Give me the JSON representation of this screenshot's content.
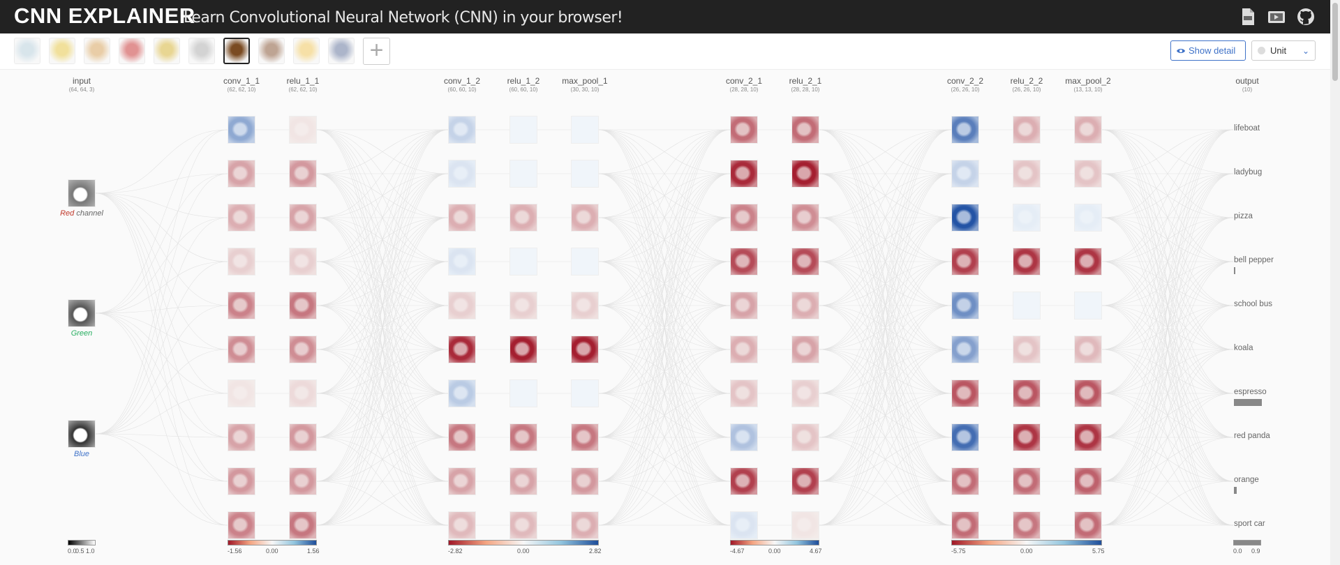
{
  "header": {
    "logo": "CNN EXPLAINER",
    "subtitle": "Learn Convolutional Neural Network (CNN) in your browser!",
    "icons": [
      "pdf-icon",
      "video-icon",
      "github-icon"
    ]
  },
  "toolbar": {
    "thumbnails": [
      {
        "name": "lifeboat",
        "color": "#b9d0dc"
      },
      {
        "name": "ladybug",
        "color": "#e6c84a"
      },
      {
        "name": "pizza",
        "color": "#d8a660"
      },
      {
        "name": "bell pepper",
        "color": "#c93a3a"
      },
      {
        "name": "school bus",
        "color": "#d7b53a"
      },
      {
        "name": "koala",
        "color": "#b0b0b0"
      },
      {
        "name": "espresso",
        "color": "#7a4b22"
      },
      {
        "name": "red panda",
        "color": "#8a5a3c"
      },
      {
        "name": "orange",
        "color": "#f0c860"
      },
      {
        "name": "sport car",
        "color": "#6a7aa0"
      }
    ],
    "active_index": 6,
    "add_icon": "plus-icon",
    "show_detail_label": "Show detail",
    "unit_label": "Unit"
  },
  "network": {
    "layers": [
      {
        "name": "input",
        "dims": "(64, 64, 3)"
      },
      {
        "name": "conv_1_1",
        "dims": "(62, 62, 10)"
      },
      {
        "name": "relu_1_1",
        "dims": "(62, 62, 10)"
      },
      {
        "name": "conv_1_2",
        "dims": "(60, 60, 10)"
      },
      {
        "name": "relu_1_2",
        "dims": "(60, 60, 10)"
      },
      {
        "name": "max_pool_1",
        "dims": "(30, 30, 10)"
      },
      {
        "name": "conv_2_1",
        "dims": "(28, 28, 10)"
      },
      {
        "name": "relu_2_1",
        "dims": "(28, 28, 10)"
      },
      {
        "name": "conv_2_2",
        "dims": "(26, 26, 10)"
      },
      {
        "name": "relu_2_2",
        "dims": "(26, 26, 10)"
      },
      {
        "name": "max_pool_2",
        "dims": "(13, 13, 10)"
      },
      {
        "name": "output",
        "dims": "(10)"
      }
    ],
    "input_channels": [
      {
        "label_prefix": "Red",
        "label_suffix": " channel",
        "color": "#c0392b"
      },
      {
        "label_prefix": "Green",
        "label_suffix": "",
        "color": "#27ae60"
      },
      {
        "label_prefix": "Blue",
        "label_suffix": "",
        "color": "#3f72c8"
      }
    ],
    "classes": [
      "lifeboat",
      "ladybug",
      "pizza",
      "bell pepper",
      "school bus",
      "koala",
      "espresso",
      "red panda",
      "orange",
      "sport car"
    ],
    "output_probs": [
      0.0,
      0.0,
      0.0,
      0.02,
      0.0,
      0.0,
      0.9,
      0.0,
      0.08,
      0.0
    ],
    "activations": [
      [
        0.45,
        -0.35,
        -0.3,
        -0.15,
        -0.5,
        -0.45,
        -0.05,
        -0.35,
        -0.4,
        -0.5
      ],
      [
        -0.05,
        -0.4,
        -0.35,
        -0.15,
        -0.55,
        -0.45,
        -0.1,
        -0.4,
        -0.4,
        -0.55
      ],
      [
        0.2,
        0.1,
        -0.3,
        0.1,
        -0.15,
        -0.9,
        0.25,
        -0.55,
        -0.35,
        -0.25
      ],
      [
        0.0,
        0.0,
        -0.3,
        0.0,
        -0.15,
        -0.95,
        0.0,
        -0.55,
        -0.35,
        -0.25
      ],
      [
        0.0,
        0.0,
        -0.3,
        0.0,
        -0.15,
        -0.95,
        0.0,
        -0.55,
        -0.4,
        -0.3
      ],
      [
        -0.6,
        -0.9,
        -0.5,
        -0.75,
        -0.35,
        -0.3,
        -0.2,
        0.3,
        -0.8,
        0.1
      ],
      [
        -0.6,
        -0.95,
        -0.45,
        -0.75,
        -0.3,
        -0.35,
        -0.15,
        -0.2,
        -0.8,
        -0.05
      ],
      [
        0.7,
        0.2,
        0.95,
        -0.8,
        0.6,
        0.5,
        -0.7,
        0.8,
        -0.6,
        -0.6
      ],
      [
        -0.3,
        -0.2,
        0.05,
        -0.85,
        0.0,
        -0.2,
        -0.7,
        -0.85,
        -0.6,
        -0.55
      ],
      [
        -0.3,
        -0.2,
        0.05,
        -0.85,
        0.0,
        -0.25,
        -0.7,
        -0.85,
        -0.65,
        -0.6
      ]
    ],
    "legends": [
      {
        "ticks": [
          "0.0",
          "0.5",
          "1.0"
        ],
        "type": "gray"
      },
      {
        "ticks": [
          "-1.56",
          "0.00",
          "1.56"
        ],
        "type": "diverging"
      },
      {
        "ticks": [
          "-2.82",
          "0.00",
          "2.82"
        ],
        "type": "diverging"
      },
      {
        "ticks": [
          "-4.67",
          "0.00",
          "4.67"
        ],
        "type": "diverging"
      },
      {
        "ticks": [
          "-5.75",
          "0.00",
          "5.75"
        ],
        "type": "diverging"
      },
      {
        "ticks": [
          "0.0",
          "0.9"
        ],
        "type": "gray-bar"
      }
    ]
  }
}
